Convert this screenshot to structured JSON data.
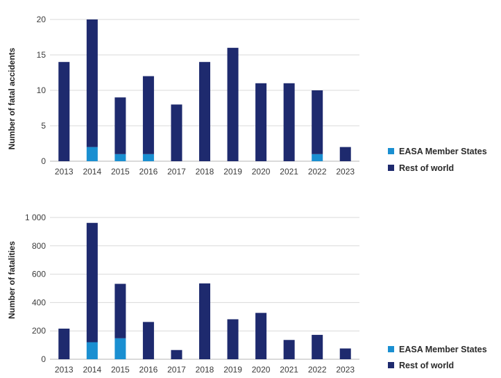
{
  "colors": {
    "rest": "#1e2a6e",
    "easa": "#1a8fd1"
  },
  "chart_data": [
    {
      "type": "bar",
      "stacked": true,
      "title": "",
      "xlabel": "",
      "ylabel": "Number of fatal accidents",
      "categories": [
        "2013",
        "2014",
        "2015",
        "2016",
        "2017",
        "2018",
        "2019",
        "2020",
        "2021",
        "2022",
        "2023"
      ],
      "series": [
        {
          "name": "EASA Member States",
          "values": [
            0,
            2,
            1,
            1,
            0,
            0,
            0,
            0,
            0,
            1,
            0
          ]
        },
        {
          "name": "Rest of world",
          "values": [
            14,
            18,
            8,
            11,
            8,
            14,
            16,
            11,
            11,
            9,
            2
          ]
        }
      ],
      "ylim": [
        0,
        20
      ],
      "yticks": [
        0,
        5,
        10,
        15,
        20
      ],
      "ytick_labels": [
        "0",
        "5",
        "10",
        "15",
        "20"
      ],
      "legend": [
        "EASA Member States",
        "Rest of world"
      ],
      "legend_position": "bottom-right"
    },
    {
      "type": "bar",
      "stacked": true,
      "title": "",
      "xlabel": "",
      "ylabel": "Number of fatalities",
      "categories": [
        "2013",
        "2014",
        "2015",
        "2016",
        "2017",
        "2018",
        "2019",
        "2020",
        "2021",
        "2022",
        "2023"
      ],
      "series": [
        {
          "name": "EASA Member States",
          "values": [
            0,
            120,
            148,
            0,
            0,
            0,
            0,
            0,
            0,
            0,
            0
          ]
        },
        {
          "name": "Rest of world",
          "values": [
            216,
            842,
            384,
            263,
            65,
            535,
            282,
            327,
            136,
            172,
            76
          ]
        }
      ],
      "ylim": [
        0,
        1000
      ],
      "yticks": [
        0,
        200,
        400,
        600,
        800,
        1000
      ],
      "ytick_labels": [
        "0",
        "200",
        "400",
        "600",
        "800",
        "1 000"
      ],
      "legend": [
        "EASA Member States",
        "Rest of world"
      ],
      "legend_position": "bottom-right"
    }
  ]
}
